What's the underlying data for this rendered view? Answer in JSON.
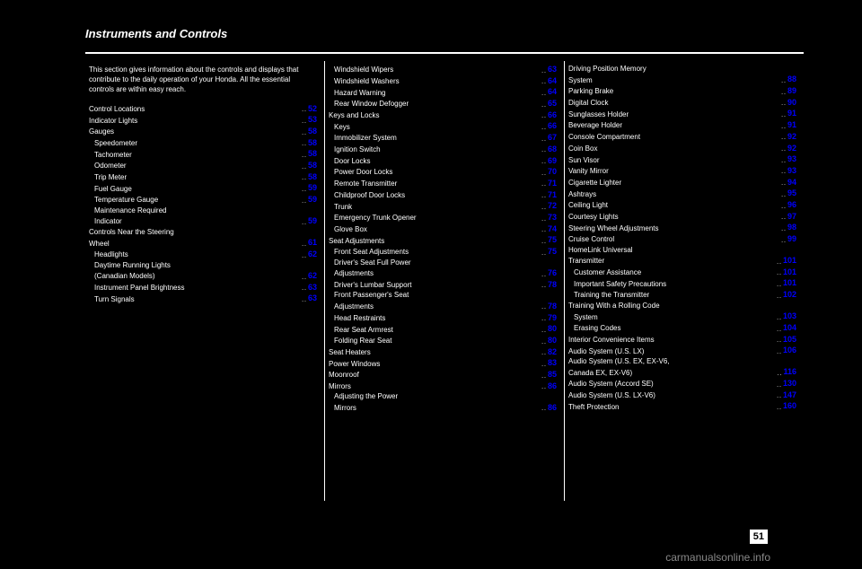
{
  "title": "Instruments and Controls",
  "pageNumber": "51",
  "watermark": "carmanualsonline.info",
  "columns": {
    "col1": {
      "intro": "This section gives information about the controls and displays that contribute to the daily operation of your Honda. All the essential controls are within easy reach.",
      "entries": [
        {
          "label": "Control Locations",
          "page": "52"
        },
        {
          "label": "Indicator Lights",
          "page": "53"
        },
        {
          "label": "Gauges",
          "page": "58"
        },
        {
          "label": "Speedometer",
          "page": "58",
          "sub": true
        },
        {
          "label": "Tachometer",
          "page": "58",
          "sub": true
        },
        {
          "label": "Odometer",
          "page": "58",
          "sub": true
        },
        {
          "label": "Trip Meter",
          "page": "58",
          "sub": true
        },
        {
          "label": "Fuel Gauge",
          "page": "59",
          "sub": true
        },
        {
          "label": "Temperature Gauge",
          "page": "59",
          "sub": true
        },
        {
          "label": "Maintenance Required",
          "sub": true
        },
        {
          "label": "Indicator",
          "page": "59",
          "sub": true
        },
        {
          "label": "Controls Near the Steering"
        },
        {
          "label": "Wheel",
          "page": "61"
        },
        {
          "label": "Headlights",
          "page": "62",
          "sub": true
        },
        {
          "label": "Daytime Running Lights",
          "sub": true
        },
        {
          "label": "(Canadian Models)",
          "page": "62",
          "sub": true
        },
        {
          "label": "Instrument Panel Brightness",
          "page": "63",
          "sub": true
        },
        {
          "label": "Turn Signals",
          "page": "63",
          "sub": true
        }
      ]
    },
    "col2": {
      "entries": [
        {
          "label": "Windshield Wipers",
          "page": "63",
          "sub": true
        },
        {
          "label": "Windshield Washers",
          "page": "64",
          "sub": true
        },
        {
          "label": "Hazard Warning",
          "page": "64",
          "sub": true
        },
        {
          "label": "Rear Window Defogger",
          "page": "65",
          "sub": true
        },
        {
          "label": "Keys and Locks",
          "page": "66"
        },
        {
          "label": "Keys",
          "page": "66",
          "sub": true
        },
        {
          "label": "Immobilizer System",
          "page": "67",
          "sub": true
        },
        {
          "label": "Ignition Switch",
          "page": "68",
          "sub": true
        },
        {
          "label": "Door Locks",
          "page": "69",
          "sub": true
        },
        {
          "label": "Power Door Locks",
          "page": "70",
          "sub": true
        },
        {
          "label": "Remote Transmitter",
          "page": "71",
          "sub": true
        },
        {
          "label": "Childproof Door Locks",
          "page": "71",
          "sub": true
        },
        {
          "label": "Trunk",
          "page": "72",
          "sub": true
        },
        {
          "label": "Emergency Trunk Opener",
          "page": "73",
          "sub": true
        },
        {
          "label": "Glove Box",
          "page": "74",
          "sub": true
        },
        {
          "label": "Seat Adjustments",
          "page": "75"
        },
        {
          "label": "Front Seat Adjustments",
          "page": "75",
          "sub": true
        },
        {
          "label": "Driver's Seat Full Power",
          "sub": true
        },
        {
          "label": "Adjustments",
          "page": "76",
          "sub": true
        },
        {
          "label": "Driver's Lumbar Support",
          "page": "78",
          "sub": true
        },
        {
          "label": "Front Passenger's Seat",
          "sub": true
        },
        {
          "label": "Adjustments",
          "page": "78",
          "sub": true
        },
        {
          "label": "Head Restraints",
          "page": "79",
          "sub": true
        },
        {
          "label": "Rear Seat Armrest",
          "page": "80",
          "sub": true
        },
        {
          "label": "Folding Rear Seat",
          "page": "80",
          "sub": true
        },
        {
          "label": "Seat Heaters",
          "page": "82"
        },
        {
          "label": "Power Windows",
          "page": "83"
        },
        {
          "label": "Moonroof",
          "page": "85"
        },
        {
          "label": "Mirrors",
          "page": "86"
        },
        {
          "label": "Adjusting the Power",
          "sub": true
        },
        {
          "label": "Mirrors",
          "page": "86",
          "sub": true
        }
      ]
    },
    "col3": {
      "entries": [
        {
          "label": "Driving Position Memory"
        },
        {
          "label": "System",
          "page": "88"
        },
        {
          "label": "Parking Brake",
          "page": "89"
        },
        {
          "label": "Digital Clock",
          "page": "90"
        },
        {
          "label": "Sunglasses Holder",
          "page": "91"
        },
        {
          "label": "Beverage Holder",
          "page": "91"
        },
        {
          "label": "Console Compartment",
          "page": "92"
        },
        {
          "label": "Coin Box",
          "page": "92"
        },
        {
          "label": "Sun Visor",
          "page": "93"
        },
        {
          "label": "Vanity Mirror",
          "page": "93"
        },
        {
          "label": "Cigarette Lighter",
          "page": "94"
        },
        {
          "label": "Ashtrays",
          "page": "95"
        },
        {
          "label": "Ceiling Light",
          "page": "96"
        },
        {
          "label": "Courtesy Lights",
          "page": "97"
        },
        {
          "label": "Steering Wheel Adjustments",
          "page": "98"
        },
        {
          "label": "Cruise Control",
          "page": "99"
        },
        {
          "label": "HomeLink Universal"
        },
        {
          "label": "Transmitter",
          "page": "101"
        },
        {
          "label": "Customer Assistance",
          "page": "101",
          "sub": true
        },
        {
          "label": "Important Safety Precautions",
          "page": "101",
          "sub": true
        },
        {
          "label": "Training the Transmitter",
          "page": "102",
          "sub": true
        },
        {
          "label": "Training With a Rolling Code"
        },
        {
          "label": "System",
          "page": "103",
          "sub": true
        },
        {
          "label": "Erasing Codes",
          "page": "104",
          "sub": true
        },
        {
          "label": "Interior Convenience Items",
          "page": "105"
        },
        {
          "label": "Audio System (U.S. LX)",
          "page": "106"
        },
        {
          "label": "Audio System (U.S. EX, EX-V6,"
        },
        {
          "label": "Canada EX, EX-V6)",
          "page": "116"
        },
        {
          "label": "Audio System (Accord SE)",
          "page": "130"
        },
        {
          "label": "Audio System (U.S. LX-V6)",
          "page": "147"
        },
        {
          "label": "Theft Protection",
          "page": "160"
        }
      ]
    }
  }
}
